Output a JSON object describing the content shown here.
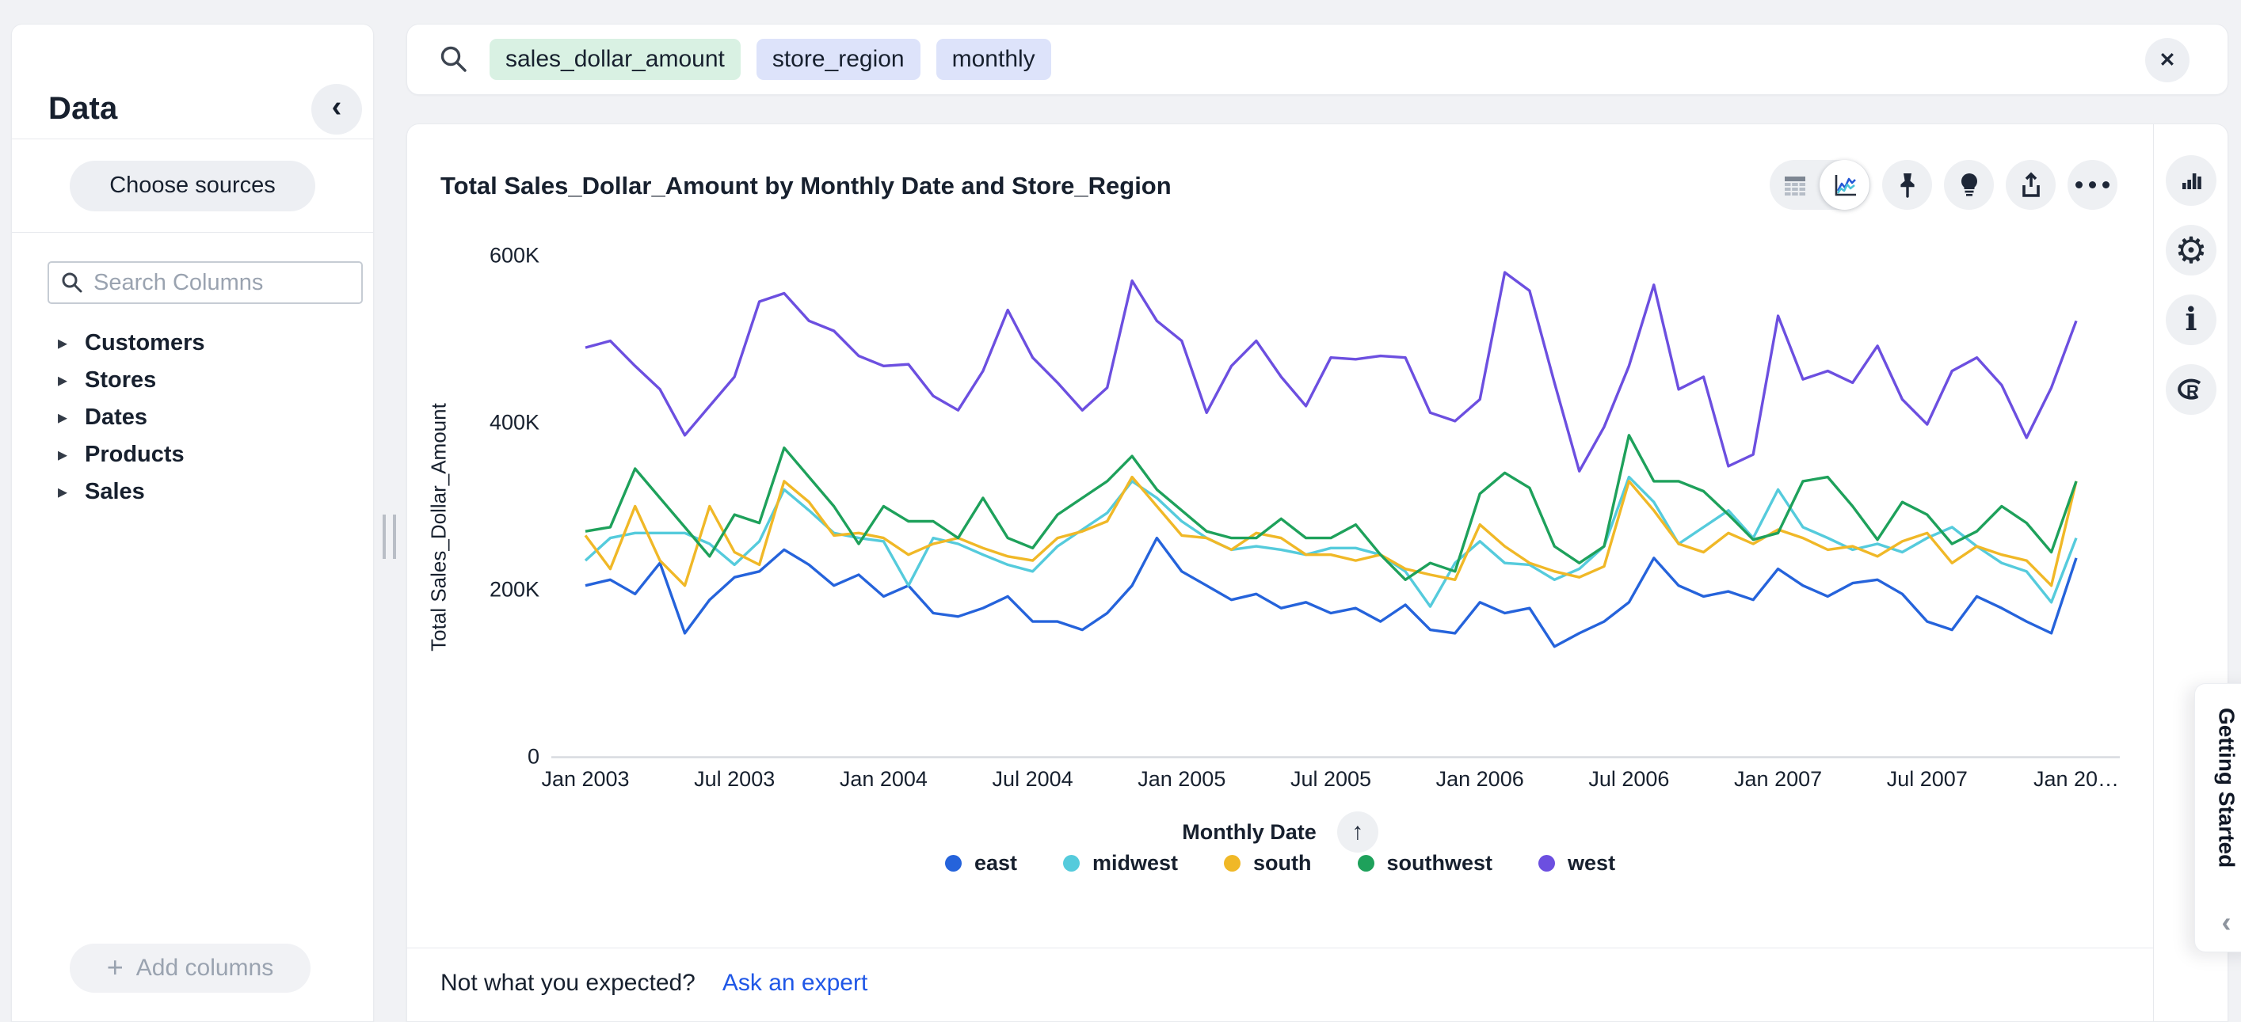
{
  "page": {
    "background": "#f1f2f5"
  },
  "sidebar": {
    "title": "Data",
    "collapse_icon": "chevron-left",
    "choose_sources_label": "Choose sources",
    "search_placeholder": "Search Columns",
    "tree_items": [
      {
        "label": "Customers"
      },
      {
        "label": "Stores"
      },
      {
        "label": "Dates"
      },
      {
        "label": "Products"
      },
      {
        "label": "Sales"
      }
    ],
    "add_columns_label": "Add columns"
  },
  "search_bar": {
    "tokens": [
      {
        "text": "sales_dollar_amount",
        "kind": "measure",
        "bg": "#d9f1e3"
      },
      {
        "text": "store_region",
        "kind": "attribute",
        "bg": "#dde3fa"
      },
      {
        "text": "monthly",
        "kind": "keyword",
        "bg": "#dde3fa"
      }
    ],
    "close_icon": "close"
  },
  "answer": {
    "title": "Total Sales_Dollar_Amount by Monthly Date and Store_Region",
    "toolbar_icons": [
      "table-view",
      "chart-view",
      "pin",
      "insights",
      "share",
      "more"
    ],
    "x_axis_title": "Monthly Date",
    "sort_icon": "arrow-up",
    "footer": {
      "prompt": "Not what you expected?",
      "link_label": "Ask an expert",
      "link_color": "#1f57e7"
    }
  },
  "right_rail_icons": [
    "chart-type",
    "settings",
    "info",
    "r-analysis"
  ],
  "getting_started": {
    "label": "Getting Started",
    "collapse_icon": "chevron-left"
  },
  "chart_data": {
    "type": "line",
    "title": "Total Sales_Dollar_Amount by Monthly Date and Store_Region",
    "xlabel": "Monthly Date",
    "ylabel": "Total Sales_Dollar_Amount",
    "ylim": [
      0,
      600
    ],
    "y_unit": "thousands (K USD)",
    "y_ticks": [
      {
        "label": "600K",
        "value": 600
      },
      {
        "label": "400K",
        "value": 400
      },
      {
        "label": "200K",
        "value": 200
      },
      {
        "label": "0",
        "value": 0
      }
    ],
    "x_start": "Jan 2003",
    "x_end": "Jan 2008",
    "x_interval": "month",
    "x_points": 61,
    "x_tick_labels": [
      "Jan 2003",
      "Jul 2003",
      "Jan 2004",
      "Jul 2004",
      "Jan 2005",
      "Jul 2005",
      "Jan 2006",
      "Jul 2006",
      "Jan 2007",
      "Jul 2007",
      "Jan 20…"
    ],
    "x_tick_every_n_points": 6,
    "grid": false,
    "legend_position": "bottom",
    "series": [
      {
        "name": "east",
        "color": "#2563db",
        "values": [
          205,
          212,
          195,
          232,
          148,
          188,
          215,
          222,
          248,
          230,
          205,
          218,
          192,
          205,
          172,
          168,
          178,
          192,
          162,
          162,
          152,
          172,
          205,
          262,
          222,
          205,
          188,
          195,
          178,
          185,
          172,
          178,
          162,
          182,
          152,
          148,
          185,
          172,
          178,
          132,
          148,
          162,
          185,
          238,
          205,
          192,
          198,
          188,
          225,
          205,
          192,
          208,
          212,
          195,
          162,
          152,
          192,
          178,
          162,
          148,
          238
        ]
      },
      {
        "name": "midwest",
        "color": "#55cbdc",
        "values": [
          235,
          262,
          268,
          268,
          268,
          255,
          230,
          258,
          320,
          295,
          268,
          262,
          258,
          205,
          262,
          255,
          242,
          230,
          222,
          252,
          272,
          292,
          330,
          310,
          282,
          262,
          248,
          252,
          248,
          242,
          250,
          250,
          242,
          222,
          180,
          232,
          258,
          232,
          230,
          212,
          225,
          252,
          335,
          305,
          255,
          275,
          295,
          262,
          320,
          275,
          262,
          248,
          255,
          245,
          262,
          275,
          252,
          232,
          222,
          185,
          262
        ]
      },
      {
        "name": "south",
        "color": "#f0b827",
        "values": [
          265,
          225,
          300,
          235,
          205,
          300,
          245,
          230,
          330,
          305,
          265,
          268,
          262,
          242,
          255,
          262,
          250,
          240,
          235,
          262,
          270,
          282,
          335,
          300,
          265,
          262,
          248,
          268,
          262,
          242,
          242,
          235,
          242,
          225,
          218,
          212,
          278,
          252,
          232,
          222,
          215,
          228,
          330,
          295,
          255,
          245,
          268,
          255,
          272,
          262,
          248,
          252,
          240,
          258,
          268,
          232,
          252,
          242,
          235,
          205,
          330
        ]
      },
      {
        "name": "southwest",
        "color": "#1ea15b",
        "values": [
          270,
          275,
          345,
          310,
          275,
          240,
          290,
          280,
          370,
          335,
          300,
          255,
          300,
          282,
          282,
          262,
          310,
          262,
          250,
          290,
          310,
          330,
          360,
          320,
          295,
          270,
          262,
          262,
          285,
          262,
          262,
          278,
          242,
          212,
          232,
          222,
          315,
          340,
          322,
          252,
          232,
          252,
          385,
          330,
          330,
          318,
          290,
          260,
          268,
          330,
          335,
          300,
          260,
          305,
          290,
          255,
          270,
          300,
          280,
          245,
          330
        ]
      },
      {
        "name": "west",
        "color": "#6c4fe0",
        "values": [
          490,
          498,
          468,
          440,
          385,
          420,
          455,
          545,
          555,
          522,
          510,
          480,
          468,
          470,
          432,
          415,
          462,
          535,
          478,
          448,
          415,
          442,
          570,
          522,
          498,
          412,
          468,
          498,
          455,
          420,
          478,
          476,
          480,
          478,
          412,
          402,
          428,
          580,
          558,
          448,
          342,
          395,
          468,
          565,
          440,
          455,
          348,
          362,
          528,
          452,
          462,
          448,
          492,
          428,
          398,
          462,
          478,
          445,
          382,
          442,
          522
        ]
      }
    ]
  }
}
